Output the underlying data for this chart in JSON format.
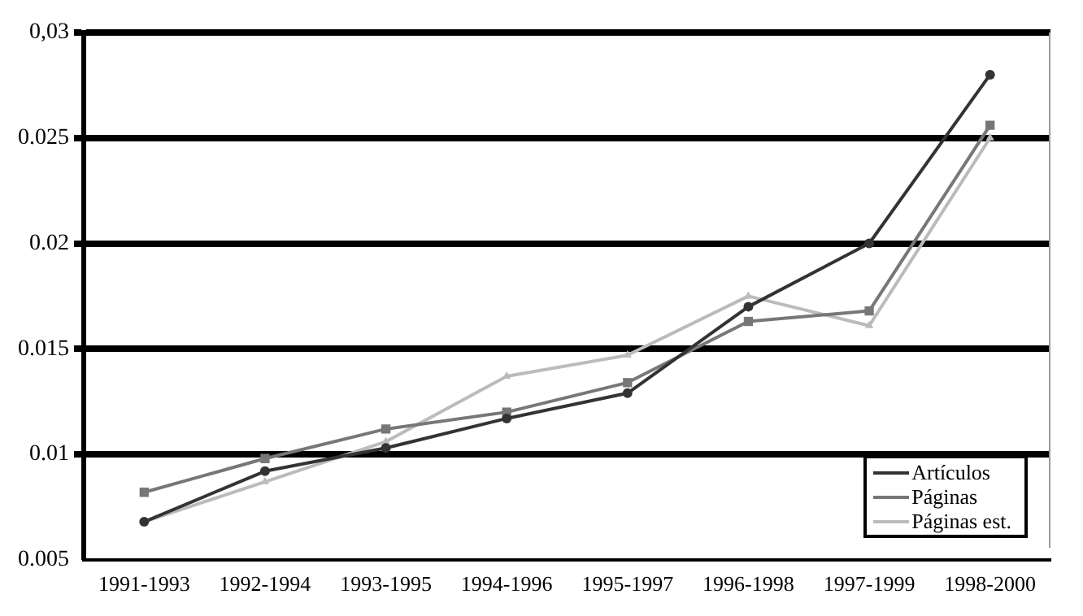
{
  "chart_data": {
    "type": "line",
    "categories": [
      "1991-1993",
      "1992-1994",
      "1993-1995",
      "1994-1996",
      "1995-1997",
      "1996-1998",
      "1997-1999",
      "1998-2000"
    ],
    "series": [
      {
        "name": "Artículos",
        "color": "#333333",
        "marker": "circle",
        "values": [
          0.0068,
          0.0092,
          0.0103,
          0.0117,
          0.0129,
          0.017,
          0.02,
          0.028
        ]
      },
      {
        "name": "Páginas",
        "color": "#777777",
        "marker": "square",
        "values": [
          0.0082,
          0.0098,
          0.0112,
          0.012,
          0.0134,
          0.0163,
          0.0168,
          0.0256
        ]
      },
      {
        "name": "Páginas est.",
        "color": "#bbbbbb",
        "marker": "triangle",
        "values": [
          0.0068,
          0.0087,
          0.0106,
          0.0137,
          0.0147,
          0.0175,
          0.0161,
          0.025
        ]
      }
    ],
    "ylim": [
      0.005,
      0.03
    ],
    "yticks": [
      0.005,
      0.01,
      0.015,
      0.02,
      0.025,
      {
        "value": 0.03,
        "label": "0,03"
      }
    ],
    "grid": "y",
    "legend": "bottom right",
    "line_style": "solid"
  }
}
